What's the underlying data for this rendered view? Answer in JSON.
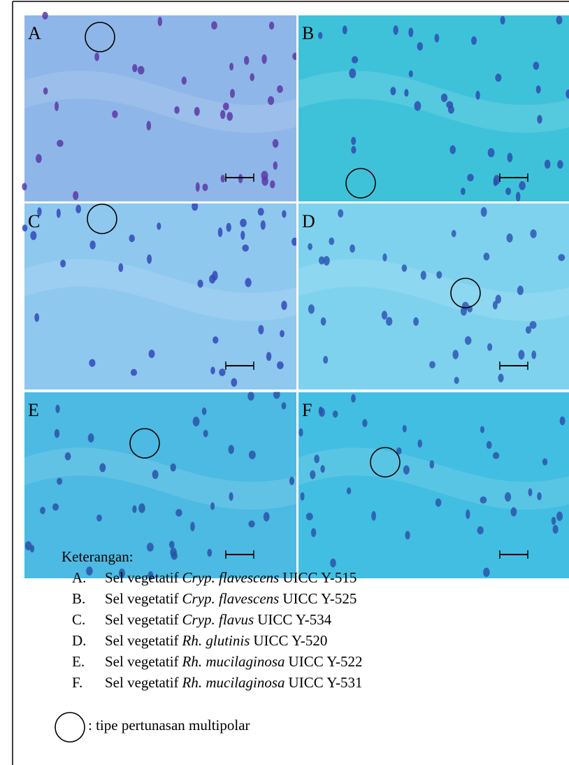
{
  "panels": [
    {
      "label": "A"
    },
    {
      "label": "B"
    },
    {
      "label": "C"
    },
    {
      "label": "D"
    },
    {
      "label": "E"
    },
    {
      "label": "F"
    }
  ],
  "legend": {
    "title": "Keterangan:",
    "items": [
      {
        "letter": "A.",
        "prefix": "Sel vegetatif",
        "species": "Cryp. flavescens",
        "code": "UICC Y-515"
      },
      {
        "letter": "B.",
        "prefix": "Sel vegetatif",
        "species": "Cryp. flavescens",
        "code": "UICC Y-525"
      },
      {
        "letter": "C.",
        "prefix": "Sel vegetatif",
        "species": "Cryp. flavus",
        "code": "UICC Y-534"
      },
      {
        "letter": "D.",
        "prefix": "Sel vegetatif",
        "species": "Rh. glutinis",
        "code": "UICC Y-520"
      },
      {
        "letter": "E.",
        "prefix": "Sel vegetatif",
        "species": "Rh. mucilaginosa",
        "code": "UICC Y-522"
      },
      {
        "letter": "F.",
        "prefix": "Sel vegetatif",
        "species": "Rh. mucilaginosa",
        "code": "UICC Y-531"
      }
    ],
    "symbol_note": ": tipe pertunasan multipolar"
  }
}
